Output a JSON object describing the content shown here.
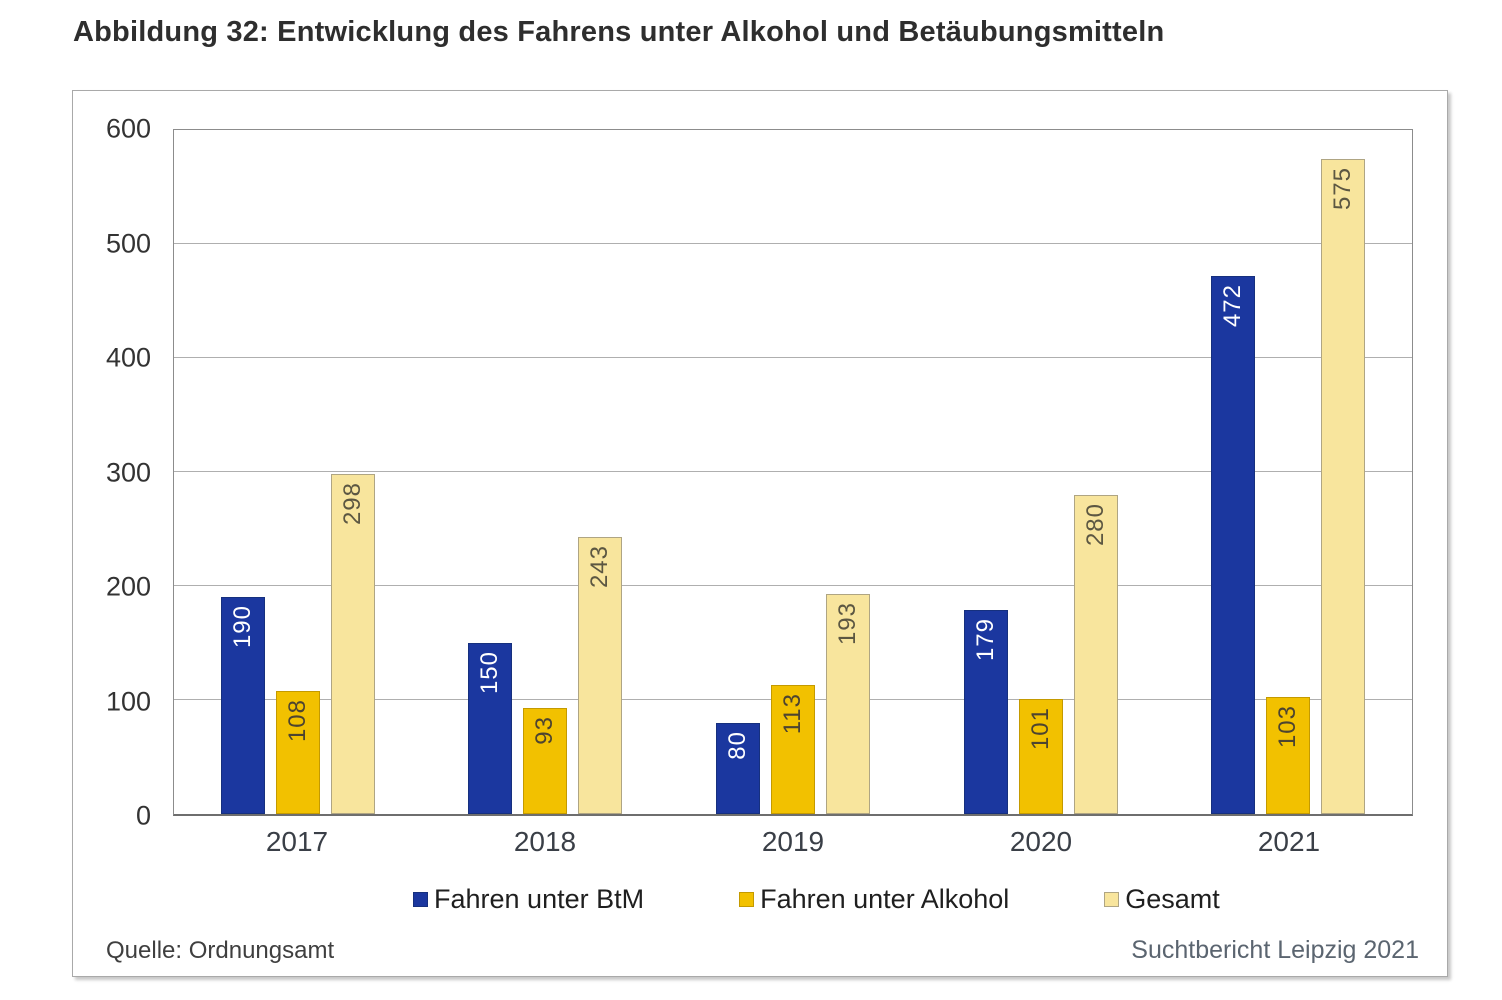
{
  "page": {
    "title": "Abbildung 32: Entwicklung des Fahrens unter Alkohol und Betäubungsmitteln"
  },
  "figure": {
    "source": "Quelle: Ordnungsamt",
    "attribution": "Suchtbericht Leipzig 2021"
  },
  "chart_data": {
    "type": "bar",
    "title": "",
    "xlabel": "",
    "ylabel": "",
    "categories": [
      "2017",
      "2018",
      "2019",
      "2020",
      "2021"
    ],
    "series": [
      {
        "name": "Fahren unter BtM",
        "values": [
          190,
          150,
          80,
          179,
          472
        ],
        "color": "#1b379f",
        "border_color": "#16307e",
        "label_color": "#ffffff"
      },
      {
        "name": "Fahren unter Alkohol",
        "values": [
          108,
          93,
          113,
          101,
          103
        ],
        "color": "#f2c100",
        "border_color": "#c49a00",
        "label_color": "#4d4430"
      },
      {
        "name": "Gesamt",
        "values": [
          298,
          243,
          193,
          280,
          575
        ],
        "color": "#f8e59d",
        "border_color": "#afa583",
        "label_color": "#5c5742"
      }
    ],
    "ylim": [
      0,
      600
    ],
    "yticks": [
      0,
      100,
      200,
      300,
      400,
      500,
      600
    ],
    "grid": true,
    "legend_position": "bottom",
    "bar_value_labels": "inside-top-rotated"
  }
}
